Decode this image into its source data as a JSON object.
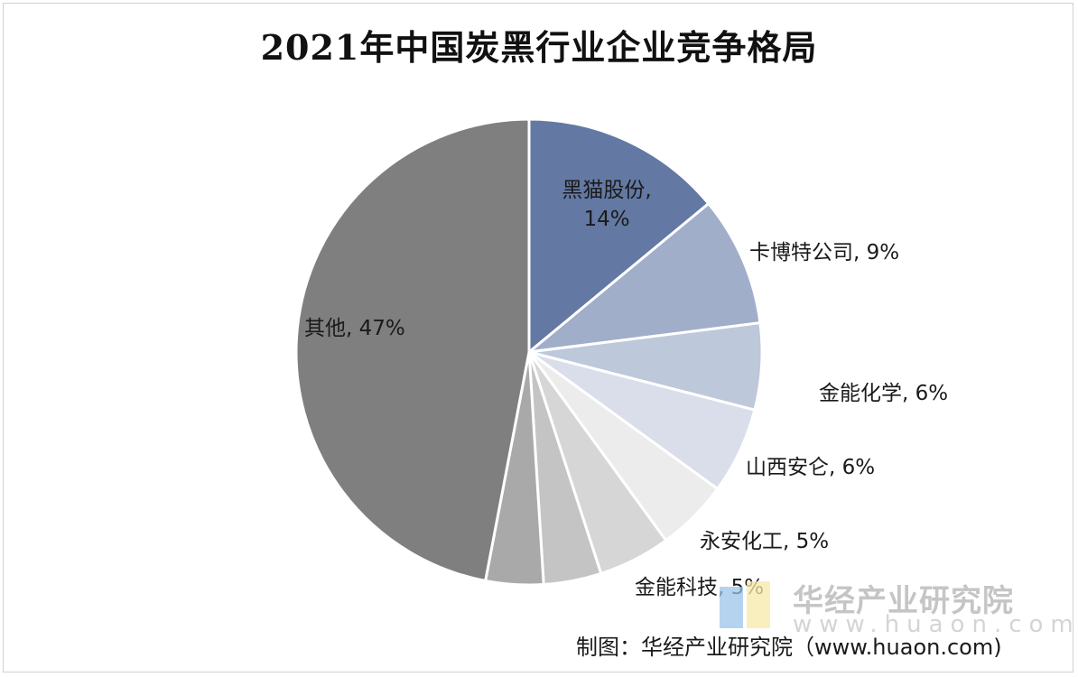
{
  "chart_data": {
    "type": "pie",
    "title": "2021年中国炭黑行业企业竞争格局",
    "slices": [
      {
        "name": "黑猫股份",
        "value": 14,
        "label": "黑猫股份,",
        "value_text": "14%",
        "color": "#6379A3"
      },
      {
        "name": "卡博特公司",
        "value": 9,
        "label": "卡博特公司, 9%",
        "color": "#A1AECA"
      },
      {
        "name": "金能化学",
        "value": 6,
        "label": "金能化学, 6%",
        "color": "#BEC8DB"
      },
      {
        "name": "山西安仑",
        "value": 6,
        "label": "山西安仑, 6%",
        "color": "#D9DEEA"
      },
      {
        "name": "永安化工",
        "value": 5,
        "label": "永安化工, 5%",
        "color": "#ECECEC"
      },
      {
        "name": "金能科技",
        "value": 5,
        "label": "金能科技, 5%",
        "color": "#D6D6D6"
      },
      {
        "name": "unlabeled-1",
        "value": 4,
        "color": "#C4C4C4"
      },
      {
        "name": "unlabeled-2",
        "value": 4,
        "color": "#A9A9A9"
      },
      {
        "name": "其他",
        "value": 47,
        "label": "其他, 47%",
        "color": "#7F7F7F"
      }
    ]
  },
  "watermark": {
    "brand": "华经产业研究院",
    "url": "www.huaon.com"
  },
  "source": "制图：华经产业研究院（www.huaon.com)"
}
